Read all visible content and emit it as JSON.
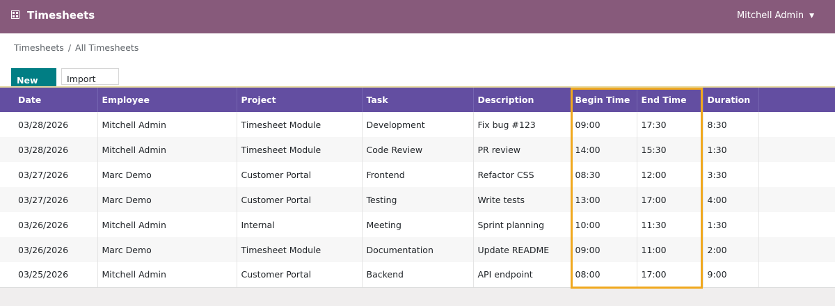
{
  "navbar": {
    "app_name": "Timesheets",
    "user_name": "Mitchell Admin",
    "apps_icon": "apps-grid-icon",
    "caret_icon": "caret-down-icon"
  },
  "breadcrumb": {
    "items": [
      "Timesheets",
      "All Timesheets"
    ],
    "separator": "/"
  },
  "toolbar": {
    "new_label": "New",
    "import_label": "Import"
  },
  "table": {
    "columns": [
      "Date",
      "Employee",
      "Project",
      "Task",
      "Description",
      "Begin Time",
      "End Time",
      "Duration",
      ""
    ],
    "rows": [
      [
        "03/28/2026",
        "Mitchell Admin",
        "Timesheet Module",
        "Development",
        "Fix bug #123",
        "09:00",
        "17:30",
        "8:30",
        ""
      ],
      [
        "03/28/2026",
        "Mitchell Admin",
        "Timesheet Module",
        "Code Review",
        "PR review",
        "14:00",
        "15:30",
        "1:30",
        ""
      ],
      [
        "03/27/2026",
        "Marc Demo",
        "Customer Portal",
        "Frontend",
        "Refactor CSS",
        "08:30",
        "12:00",
        "3:30",
        ""
      ],
      [
        "03/27/2026",
        "Marc Demo",
        "Customer Portal",
        "Testing",
        "Write tests",
        "13:00",
        "17:00",
        "4:00",
        ""
      ],
      [
        "03/26/2026",
        "Mitchell Admin",
        "Internal",
        "Meeting",
        "Sprint planning",
        "10:00",
        "11:30",
        "1:30",
        ""
      ],
      [
        "03/26/2026",
        "Marc Demo",
        "Timesheet Module",
        "Documentation",
        "Update README",
        "09:00",
        "11:00",
        "2:00",
        ""
      ],
      [
        "03/25/2026",
        "Mitchell Admin",
        "Customer Portal",
        "Backend",
        "API endpoint",
        "08:00",
        "17:00",
        "9:00",
        ""
      ]
    ]
  },
  "colors": {
    "navbar": "#875a7b",
    "table_header": "#634ea1",
    "primary_button": "#017e84",
    "highlight": "#f0a81e"
  }
}
